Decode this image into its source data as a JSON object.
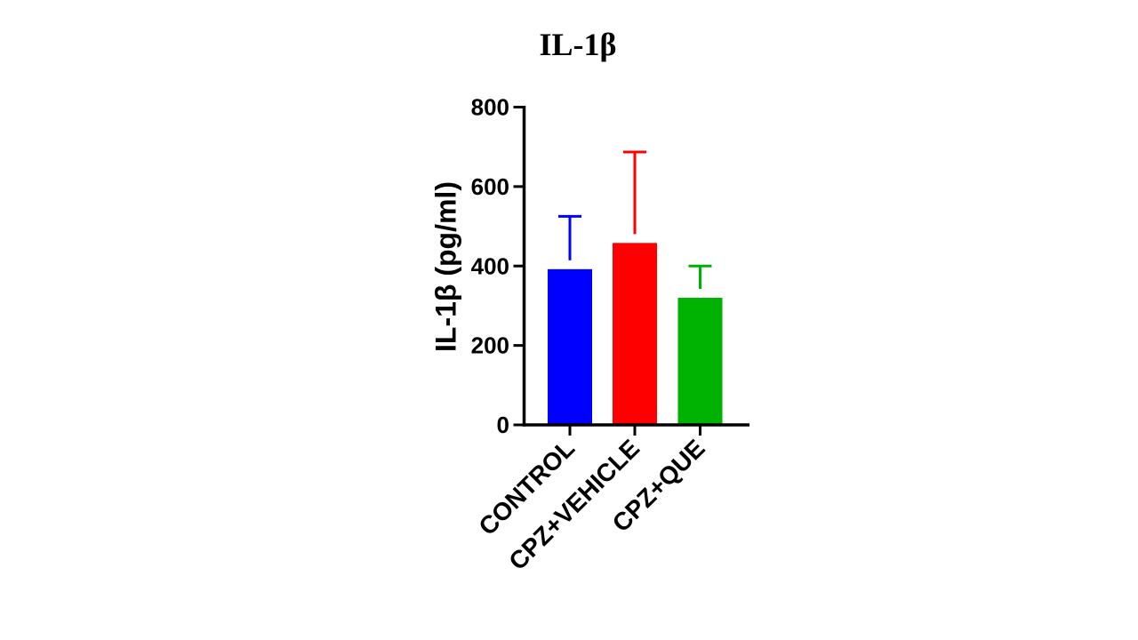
{
  "title": "IL-1β",
  "chart_data": {
    "type": "bar",
    "categories": [
      "CONTROL",
      "CPZ+VEHICLE",
      "CPZ+QUE"
    ],
    "values": [
      392,
      458,
      320
    ],
    "errors_up": [
      133,
      229,
      80
    ],
    "bar_colors": [
      "#0000FF",
      "#FF0000",
      "#00B200"
    ],
    "title": "IL-1β",
    "xlabel": "",
    "ylabel": "IL-1β (pg/ml)",
    "ylim": [
      0,
      800
    ],
    "yticks": [
      0,
      200,
      400,
      600,
      800
    ],
    "legend": "none",
    "grid": false
  },
  "colors": {
    "axis": "#000000",
    "background": "#FFFFFF"
  }
}
